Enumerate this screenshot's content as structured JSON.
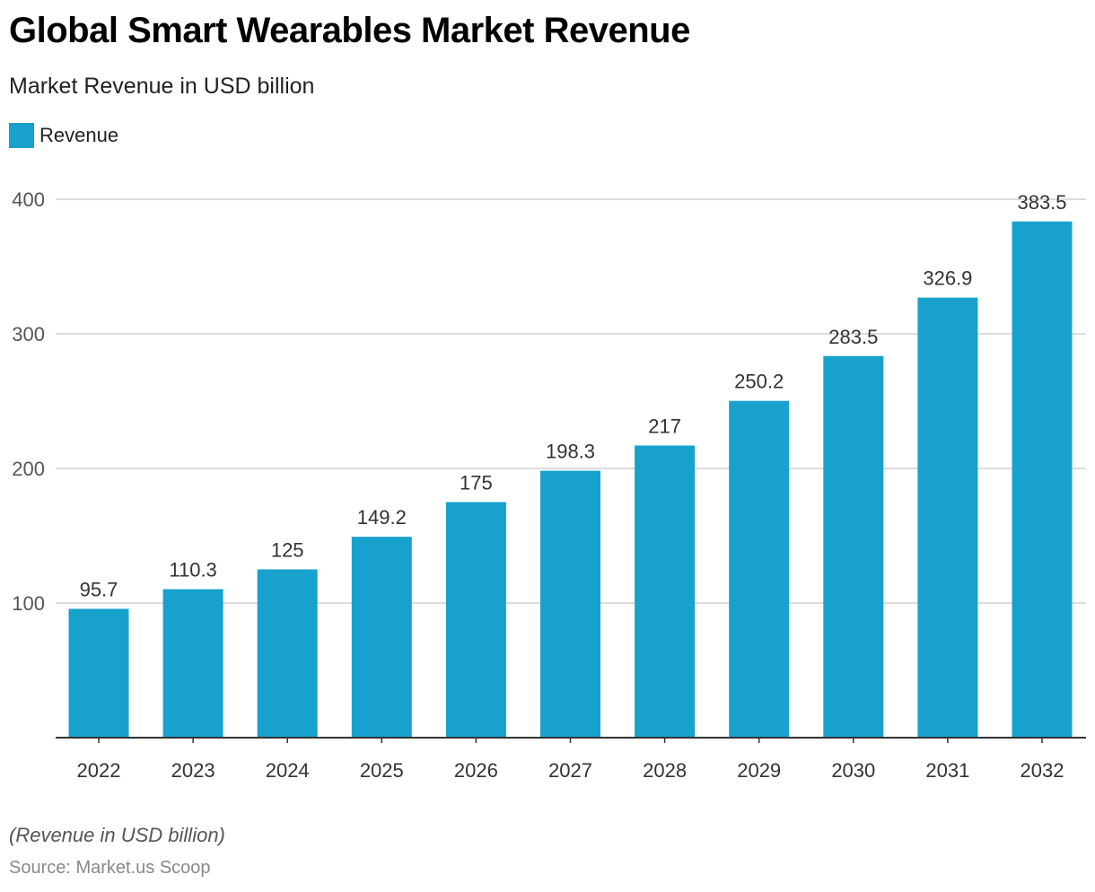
{
  "chart_data": {
    "type": "bar",
    "title": "Global Smart Wearables Market Revenue",
    "subtitle": "Market Revenue in USD billion",
    "categories": [
      "2022",
      "2023",
      "2024",
      "2025",
      "2026",
      "2027",
      "2028",
      "2029",
      "2030",
      "2031",
      "2032"
    ],
    "series": [
      {
        "name": "Revenue",
        "values": [
          95.7,
          110.3,
          125,
          149.2,
          175,
          198.3,
          217,
          250.2,
          283.5,
          326.9,
          383.5
        ],
        "color": "#19a1cd"
      }
    ],
    "value_labels": [
      "95.7",
      "110.3",
      "125",
      "149.2",
      "175",
      "198.3",
      "217",
      "250.2",
      "283.5",
      "326.9",
      "383.5"
    ],
    "yticks": [
      100,
      200,
      300,
      400
    ],
    "ylim": [
      0,
      400
    ],
    "grid": true,
    "legend_position": "top-left",
    "note": "(Revenue in USD billion)",
    "source": "Source: Market.us Scoop"
  }
}
